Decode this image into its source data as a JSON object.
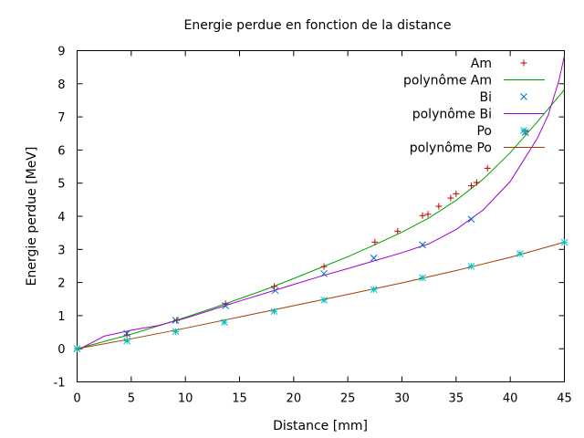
{
  "chart_data": {
    "type": "scatter",
    "title": "Energie perdue en fonction de la distance",
    "xlabel": "Distance [mm]",
    "ylabel": "Energie perdue [MeV]",
    "xlim": [
      0,
      45
    ],
    "ylim": [
      -1,
      9
    ],
    "xticks": [
      "0",
      "5",
      "10",
      "15",
      "20",
      "25",
      "30",
      "35",
      "40",
      "45"
    ],
    "yticks": [
      "-1",
      "0",
      "1",
      "2",
      "3",
      "4",
      "5",
      "6",
      "7",
      "8",
      "9"
    ],
    "grid": false,
    "legend_position": "top-right",
    "series": [
      {
        "name": "Am",
        "kind": "points",
        "marker": "plus",
        "color": "#c00000",
        "points": [
          [
            0,
            0
          ],
          [
            4.6,
            0.42
          ],
          [
            9.2,
            0.86
          ],
          [
            13.7,
            1.36
          ],
          [
            18.2,
            1.88
          ],
          [
            22.8,
            2.48
          ],
          [
            27.5,
            3.22
          ],
          [
            29.6,
            3.55
          ],
          [
            31.9,
            4.02
          ],
          [
            32.4,
            4.06
          ],
          [
            33.4,
            4.3
          ],
          [
            34.5,
            4.55
          ],
          [
            35.0,
            4.68
          ],
          [
            36.4,
            4.92
          ],
          [
            36.9,
            5.02
          ],
          [
            37.9,
            5.45
          ],
          [
            41.4,
            6.56
          ]
        ]
      },
      {
        "name": "polynôme Am",
        "kind": "curve",
        "color": "#00a000",
        "points": [
          [
            0,
            0
          ],
          [
            2.5,
            0.22
          ],
          [
            5,
            0.44
          ],
          [
            7.5,
            0.69
          ],
          [
            10,
            0.95
          ],
          [
            12.5,
            1.22
          ],
          [
            15,
            1.51
          ],
          [
            17.5,
            1.8
          ],
          [
            20,
            2.12
          ],
          [
            22.5,
            2.45
          ],
          [
            25,
            2.78
          ],
          [
            27.5,
            3.14
          ],
          [
            30,
            3.52
          ],
          [
            32.5,
            3.95
          ],
          [
            35,
            4.48
          ],
          [
            37.5,
            5.12
          ],
          [
            40,
            5.92
          ],
          [
            42.5,
            6.85
          ],
          [
            45,
            7.82
          ]
        ]
      },
      {
        "name": "Bi",
        "kind": "points",
        "marker": "cross",
        "color": "#0070c0",
        "points": [
          [
            0,
            0
          ],
          [
            4.6,
            0.46
          ],
          [
            9.1,
            0.86
          ],
          [
            13.7,
            1.3
          ],
          [
            18.3,
            1.76
          ],
          [
            22.8,
            2.27
          ],
          [
            27.4,
            2.74
          ],
          [
            31.9,
            3.14
          ],
          [
            36.4,
            3.91
          ],
          [
            41.4,
            6.53
          ]
        ]
      },
      {
        "name": "polynôme Bi",
        "kind": "curve",
        "color": "#a000d0",
        "points": [
          [
            0,
            -0.05
          ],
          [
            2.5,
            0.38
          ],
          [
            5,
            0.56
          ],
          [
            7.5,
            0.7
          ],
          [
            10,
            0.92
          ],
          [
            12.5,
            1.18
          ],
          [
            15,
            1.44
          ],
          [
            17.5,
            1.69
          ],
          [
            20,
            1.94
          ],
          [
            22.5,
            2.19
          ],
          [
            25,
            2.42
          ],
          [
            27.5,
            2.66
          ],
          [
            30,
            2.9
          ],
          [
            32.5,
            3.17
          ],
          [
            35,
            3.6
          ],
          [
            37.5,
            4.19
          ],
          [
            40,
            5.05
          ],
          [
            42.5,
            6.35
          ],
          [
            43.5,
            7.05
          ],
          [
            44.5,
            8.1
          ],
          [
            45,
            8.85
          ]
        ]
      },
      {
        "name": "Po",
        "kind": "points",
        "marker": "star",
        "color": "#00c0c0",
        "points": [
          [
            0,
            0
          ],
          [
            4.6,
            0.24
          ],
          [
            9.1,
            0.52
          ],
          [
            13.6,
            0.8
          ],
          [
            18.2,
            1.13
          ],
          [
            22.8,
            1.47
          ],
          [
            27.4,
            1.79
          ],
          [
            31.9,
            2.14
          ],
          [
            36.4,
            2.49
          ],
          [
            40.9,
            2.87
          ],
          [
            45,
            3.21
          ]
        ]
      },
      {
        "name": "polynôme Po",
        "kind": "curve",
        "color": "#a04000",
        "points": [
          [
            0,
            0
          ],
          [
            5,
            0.3
          ],
          [
            10,
            0.62
          ],
          [
            15,
            0.96
          ],
          [
            20,
            1.3
          ],
          [
            25,
            1.64
          ],
          [
            30,
            1.99
          ],
          [
            35,
            2.36
          ],
          [
            40,
            2.76
          ],
          [
            45,
            3.22
          ]
        ]
      }
    ]
  }
}
